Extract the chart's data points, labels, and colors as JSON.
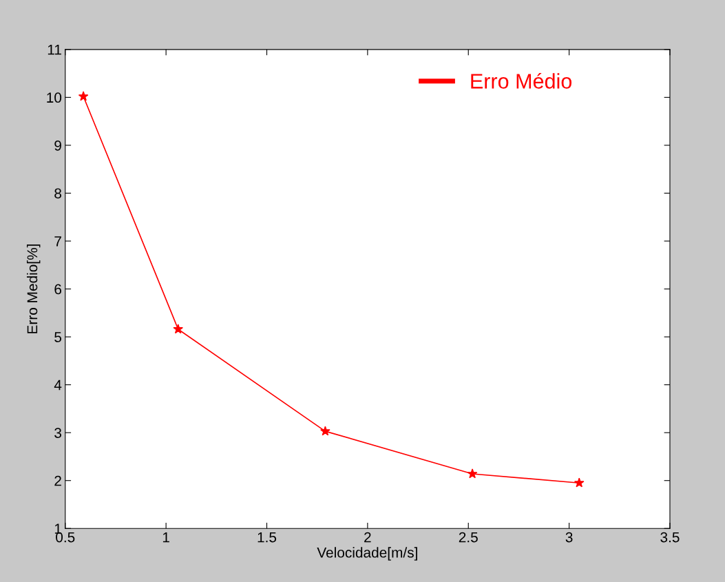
{
  "chart_data": {
    "type": "line",
    "xlabel": "Velocidade[m/s]",
    "ylabel": "Erro Medio[%]",
    "x": [
      0.59,
      1.06,
      1.79,
      2.52,
      3.05
    ],
    "series": [
      {
        "name": "Erro Médio",
        "color": "#ff0000",
        "values": [
          10.02,
          5.16,
          3.03,
          2.14,
          1.95
        ]
      }
    ],
    "xlim": [
      0.5,
      3.5
    ],
    "xticks": [
      0.5,
      1,
      1.5,
      2,
      2.5,
      3,
      3.5
    ],
    "ylim": [
      1,
      11
    ],
    "yticks": [
      1,
      2,
      3,
      4,
      5,
      6,
      7,
      8,
      9,
      10,
      11
    ],
    "marker": "star",
    "line_style": "solid",
    "legend": "top right",
    "grid": false
  }
}
